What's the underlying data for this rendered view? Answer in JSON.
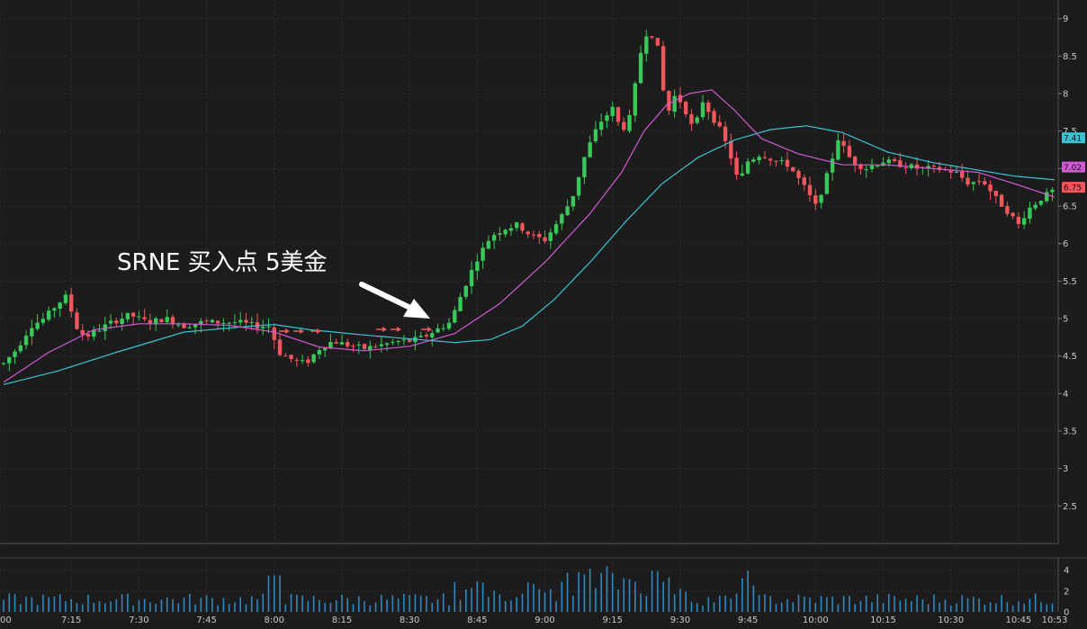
{
  "chart_data": {
    "type": "candlestick",
    "ticker_annotation": "SRNE 买入点  5美金",
    "colors": {
      "up": "#38c95a",
      "down": "#f0575c",
      "ma_fast": "#d15ad4",
      "ma_slow": "#39c4d3",
      "volume": "#2d89c0",
      "background": "#1c1c1c",
      "grid": "#3a3a3a",
      "arrow": "#ffffff",
      "marker_arrows": "#f0575c"
    },
    "y_axis": {
      "ylim": [
        2.0,
        9.2
      ],
      "ticks": [
        "9",
        "8.5",
        "8",
        "7.5",
        "7",
        "6.5",
        "6",
        "5.5",
        "5",
        "4.5",
        "4",
        "3.5",
        "3",
        "2.5"
      ]
    },
    "price_tags": [
      {
        "label": "7.41",
        "value": 7.41,
        "color": "#39c4d3"
      },
      {
        "label": "7.02",
        "value": 7.02,
        "color": "#d15ad4"
      },
      {
        "label": "6.75",
        "value": 6.75,
        "color": "#f0575c"
      }
    ],
    "x_axis": {
      "ticks": [
        {
          "label": "00",
          "minute": 0
        },
        {
          "label": "7:15",
          "minute": 15
        },
        {
          "label": "7:30",
          "minute": 30
        },
        {
          "label": "7:45",
          "minute": 45
        },
        {
          "label": "8:00",
          "minute": 60
        },
        {
          "label": "8:15",
          "minute": 75
        },
        {
          "label": "8:30",
          "minute": 90
        },
        {
          "label": "8:45",
          "minute": 105
        },
        {
          "label": "9:00",
          "minute": 120
        },
        {
          "label": "9:15",
          "minute": 135
        },
        {
          "label": "9:30",
          "minute": 150
        },
        {
          "label": "9:45",
          "minute": 165
        },
        {
          "label": "10:00",
          "minute": 180
        },
        {
          "label": "10:15",
          "minute": 195
        },
        {
          "label": "10:30",
          "minute": 210
        },
        {
          "label": "10:45",
          "minute": 225
        },
        {
          "label": "10:53",
          "minute": 233
        }
      ]
    },
    "volume_axis": {
      "ticks": [
        "4",
        "2",
        "0"
      ],
      "ylim": [
        0,
        5
      ]
    },
    "price_path": [
      [
        0,
        4.4
      ],
      [
        3,
        4.6
      ],
      [
        6,
        4.9
      ],
      [
        9,
        5.0
      ],
      [
        12,
        5.2
      ],
      [
        14,
        5.3
      ],
      [
        16,
        4.9
      ],
      [
        18,
        4.75
      ],
      [
        21,
        4.85
      ],
      [
        24,
        4.95
      ],
      [
        28,
        5.05
      ],
      [
        32,
        4.95
      ],
      [
        36,
        5.0
      ],
      [
        40,
        4.9
      ],
      [
        44,
        4.95
      ],
      [
        48,
        4.95
      ],
      [
        52,
        4.95
      ],
      [
        56,
        4.9
      ],
      [
        59,
        4.9
      ],
      [
        61,
        4.55
      ],
      [
        64,
        4.45
      ],
      [
        67,
        4.4
      ],
      [
        70,
        4.6
      ],
      [
        73,
        4.7
      ],
      [
        76,
        4.65
      ],
      [
        80,
        4.6
      ],
      [
        84,
        4.65
      ],
      [
        88,
        4.7
      ],
      [
        90,
        4.7
      ],
      [
        93,
        4.75
      ],
      [
        96,
        4.85
      ],
      [
        99,
        4.95
      ],
      [
        102,
        5.4
      ],
      [
        105,
        5.8
      ],
      [
        108,
        6.1
      ],
      [
        111,
        6.2
      ],
      [
        114,
        6.25
      ],
      [
        117,
        6.1
      ],
      [
        120,
        6.05
      ],
      [
        123,
        6.3
      ],
      [
        126,
        6.6
      ],
      [
        129,
        7.2
      ],
      [
        132,
        7.6
      ],
      [
        135,
        7.8
      ],
      [
        137,
        7.5
      ],
      [
        139,
        7.7
      ],
      [
        141,
        8.5
      ],
      [
        143,
        8.9
      ],
      [
        145,
        8.6
      ],
      [
        147,
        7.7
      ],
      [
        149,
        8.0
      ],
      [
        151,
        7.8
      ],
      [
        153,
        7.5
      ],
      [
        155,
        7.9
      ],
      [
        157,
        7.7
      ],
      [
        159,
        7.5
      ],
      [
        161,
        7.2
      ],
      [
        163,
        6.8
      ],
      [
        165,
        7.1
      ],
      [
        168,
        7.2
      ],
      [
        171,
        7.1
      ],
      [
        174,
        7.05
      ],
      [
        177,
        6.8
      ],
      [
        180,
        6.5
      ],
      [
        182,
        6.8
      ],
      [
        185,
        7.4
      ],
      [
        188,
        7.1
      ],
      [
        191,
        7.0
      ],
      [
        195,
        7.1
      ],
      [
        199,
        7.05
      ],
      [
        203,
        7.0
      ],
      [
        207,
        7.0
      ],
      [
        211,
        6.95
      ],
      [
        214,
        6.8
      ],
      [
        217,
        6.85
      ],
      [
        220,
        6.6
      ],
      [
        223,
        6.4
      ],
      [
        225,
        6.25
      ],
      [
        227,
        6.45
      ],
      [
        230,
        6.6
      ],
      [
        233,
        6.72
      ]
    ],
    "ma_fast": [
      [
        0,
        4.15
      ],
      [
        10,
        4.55
      ],
      [
        20,
        4.85
      ],
      [
        30,
        4.93
      ],
      [
        40,
        4.93
      ],
      [
        50,
        4.91
      ],
      [
        60,
        4.82
      ],
      [
        70,
        4.62
      ],
      [
        80,
        4.57
      ],
      [
        90,
        4.63
      ],
      [
        100,
        4.8
      ],
      [
        110,
        5.2
      ],
      [
        120,
        5.75
      ],
      [
        130,
        6.4
      ],
      [
        137,
        6.95
      ],
      [
        142,
        7.5
      ],
      [
        147,
        7.85
      ],
      [
        152,
        8.0
      ],
      [
        157,
        8.05
      ],
      [
        162,
        7.78
      ],
      [
        168,
        7.4
      ],
      [
        176,
        7.2
      ],
      [
        186,
        7.05
      ],
      [
        196,
        7.05
      ],
      [
        206,
        7.0
      ],
      [
        216,
        6.95
      ],
      [
        224,
        6.8
      ],
      [
        233,
        6.62
      ]
    ],
    "ma_slow": [
      [
        0,
        4.12
      ],
      [
        12,
        4.3
      ],
      [
        25,
        4.55
      ],
      [
        40,
        4.82
      ],
      [
        55,
        4.9
      ],
      [
        60,
        4.92
      ],
      [
        68,
        4.85
      ],
      [
        80,
        4.78
      ],
      [
        90,
        4.73
      ],
      [
        100,
        4.68
      ],
      [
        108,
        4.72
      ],
      [
        115,
        4.9
      ],
      [
        122,
        5.25
      ],
      [
        130,
        5.75
      ],
      [
        138,
        6.3
      ],
      [
        146,
        6.8
      ],
      [
        154,
        7.15
      ],
      [
        162,
        7.38
      ],
      [
        170,
        7.52
      ],
      [
        178,
        7.57
      ],
      [
        186,
        7.48
      ],
      [
        196,
        7.22
      ],
      [
        206,
        7.08
      ],
      [
        216,
        6.98
      ],
      [
        224,
        6.9
      ],
      [
        233,
        6.85
      ]
    ],
    "volume_bars": "approx 1-minute volume bars with spikes near 8:00, 9:15-9:30 and 9:45",
    "marker_arrows": [
      "8:00",
      "8:05",
      "8:10",
      "8:25",
      "8:30",
      "8:35"
    ]
  }
}
